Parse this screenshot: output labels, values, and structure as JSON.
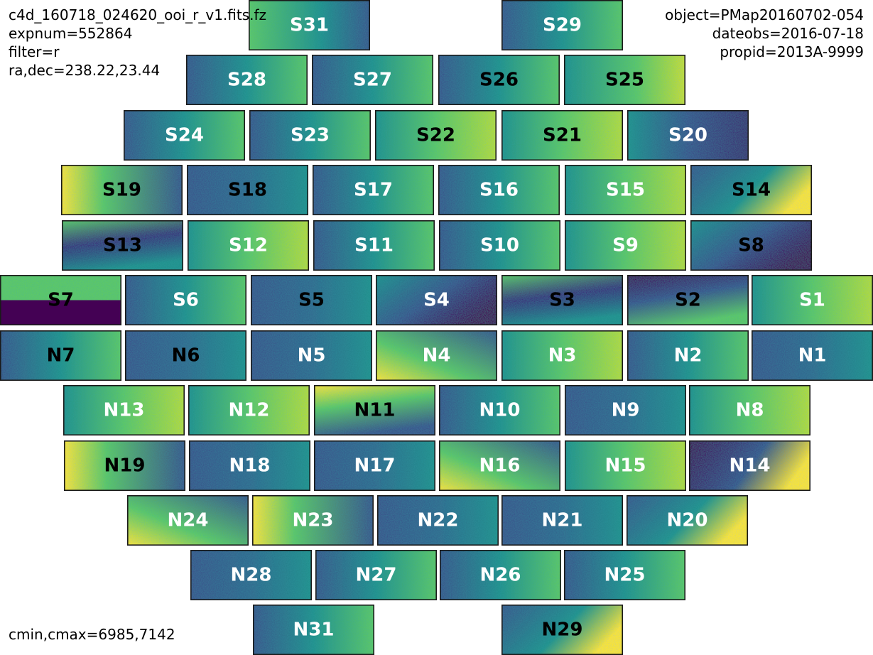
{
  "header": {
    "left": [
      "c4d_160718_024620_ooi_r_v1.fits.fz",
      "expnum=552864",
      "filter=r",
      "ra,dec=238.22,23.44"
    ],
    "right": [
      "object=PMap20160702-054",
      "dateobs=2016-07-18",
      "propid=2013A-9999"
    ]
  },
  "footer": {
    "color_range": "cmin,cmax=6985,7142"
  },
  "colormap": {
    "name": "viridis",
    "low": "#440154",
    "mid_low": "#3b528b",
    "mid": "#21918c",
    "mid_high": "#5ec962",
    "high": "#fde725"
  },
  "ccds": [
    {
      "name": "S31",
      "pattern": "gradient-right-dark",
      "label_color": "white"
    },
    {
      "name": "S29",
      "pattern": "gradient-left-dark",
      "label_color": "white"
    },
    {
      "name": "S28",
      "pattern": "gradient-left-dark",
      "label_color": "white"
    },
    {
      "name": "S27",
      "pattern": "noise",
      "label_color": "white"
    },
    {
      "name": "S26",
      "pattern": "noise",
      "label_color": "black"
    },
    {
      "name": "S25",
      "pattern": "gradient-right-bright",
      "label_color": "black"
    },
    {
      "name": "S24",
      "pattern": "gradient-left-dark",
      "label_color": "white"
    },
    {
      "name": "S23",
      "pattern": "noise",
      "label_color": "white"
    },
    {
      "name": "S22",
      "pattern": "noise-bright",
      "label_color": "black"
    },
    {
      "name": "S21",
      "pattern": "noise-bright",
      "label_color": "black"
    },
    {
      "name": "S20",
      "pattern": "dark-blob-right",
      "label_color": "white"
    },
    {
      "name": "S19",
      "pattern": "bright-left",
      "label_color": "black"
    },
    {
      "name": "S18",
      "pattern": "noise-dark",
      "label_color": "black"
    },
    {
      "name": "S17",
      "pattern": "noise",
      "label_color": "white"
    },
    {
      "name": "S16",
      "pattern": "noise",
      "label_color": "white"
    },
    {
      "name": "S15",
      "pattern": "noise-bright",
      "label_color": "white"
    },
    {
      "name": "S14",
      "pattern": "bright-corner-right",
      "label_color": "black"
    },
    {
      "name": "S13",
      "pattern": "dark-band",
      "label_color": "black"
    },
    {
      "name": "S12",
      "pattern": "noise-bright",
      "label_color": "white"
    },
    {
      "name": "S11",
      "pattern": "noise",
      "label_color": "white"
    },
    {
      "name": "S10",
      "pattern": "noise",
      "label_color": "white"
    },
    {
      "name": "S9",
      "pattern": "noise-bright",
      "label_color": "white"
    },
    {
      "name": "S8",
      "pattern": "dark-corner-right",
      "label_color": "black"
    },
    {
      "name": "S7",
      "pattern": "half-dark-bottom",
      "label_color": "black"
    },
    {
      "name": "S6",
      "pattern": "noise",
      "label_color": "white"
    },
    {
      "name": "S5",
      "pattern": "noise-dark",
      "label_color": "black"
    },
    {
      "name": "S4",
      "pattern": "dark-corner-right",
      "label_color": "white"
    },
    {
      "name": "S3",
      "pattern": "dark-band",
      "label_color": "black"
    },
    {
      "name": "S2",
      "pattern": "dark-top",
      "label_color": "black"
    },
    {
      "name": "S1",
      "pattern": "noise-bright",
      "label_color": "white"
    },
    {
      "name": "N7",
      "pattern": "noise",
      "label_color": "black"
    },
    {
      "name": "N6",
      "pattern": "noise-dark",
      "label_color": "black"
    },
    {
      "name": "N5",
      "pattern": "noise-dark",
      "label_color": "white"
    },
    {
      "name": "N4",
      "pattern": "bright-corner-left",
      "label_color": "white"
    },
    {
      "name": "N3",
      "pattern": "noise-bright",
      "label_color": "white"
    },
    {
      "name": "N2",
      "pattern": "noise",
      "label_color": "white"
    },
    {
      "name": "N1",
      "pattern": "noise-dark",
      "label_color": "white"
    },
    {
      "name": "N13",
      "pattern": "noise-bright",
      "label_color": "white"
    },
    {
      "name": "N12",
      "pattern": "noise-bright",
      "label_color": "white"
    },
    {
      "name": "N11",
      "pattern": "bright-top",
      "label_color": "black"
    },
    {
      "name": "N10",
      "pattern": "noise",
      "label_color": "white"
    },
    {
      "name": "N9",
      "pattern": "noise-dark",
      "label_color": "white"
    },
    {
      "name": "N8",
      "pattern": "noise-bright",
      "label_color": "white"
    },
    {
      "name": "N19",
      "pattern": "bright-left",
      "label_color": "black"
    },
    {
      "name": "N18",
      "pattern": "noise-dark",
      "label_color": "white"
    },
    {
      "name": "N17",
      "pattern": "noise-dark",
      "label_color": "white"
    },
    {
      "name": "N16",
      "pattern": "bright-corner-left",
      "label_color": "white"
    },
    {
      "name": "N15",
      "pattern": "noise-bright",
      "label_color": "white"
    },
    {
      "name": "N14",
      "pattern": "dark-left-bright-right",
      "label_color": "white"
    },
    {
      "name": "N24",
      "pattern": "bright-corner-left",
      "label_color": "white"
    },
    {
      "name": "N23",
      "pattern": "bright-left",
      "label_color": "white"
    },
    {
      "name": "N22",
      "pattern": "noise-dark",
      "label_color": "white"
    },
    {
      "name": "N21",
      "pattern": "noise-dark",
      "label_color": "white"
    },
    {
      "name": "N20",
      "pattern": "bright-corner-right",
      "label_color": "white"
    },
    {
      "name": "N28",
      "pattern": "noise-dark",
      "label_color": "white"
    },
    {
      "name": "N27",
      "pattern": "noise",
      "label_color": "white"
    },
    {
      "name": "N26",
      "pattern": "noise",
      "label_color": "white"
    },
    {
      "name": "N25",
      "pattern": "noise",
      "label_color": "white"
    },
    {
      "name": "N31",
      "pattern": "noise",
      "label_color": "white"
    },
    {
      "name": "N29",
      "pattern": "bright-corner-right",
      "label_color": "black"
    }
  ]
}
